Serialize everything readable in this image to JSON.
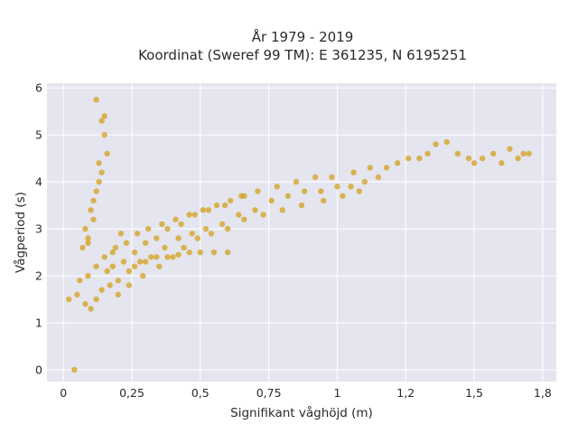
{
  "chart_data": {
    "type": "scatter",
    "title_lines": [
      "År 1979 - 2019",
      "Koordinat (Sweref 99 TM): E 361235, N 6195251"
    ],
    "xlabel": "Signifikant våghöjd (m)",
    "ylabel": "Vågperiod (s)",
    "xlim": [
      -0.06,
      1.8
    ],
    "ylim": [
      -0.25,
      6.1
    ],
    "x_ticks": [
      0,
      0.25,
      0.5,
      0.75,
      1,
      1.25,
      1.5,
      1.75
    ],
    "x_tick_labels": [
      "0",
      "0,25",
      "0,5",
      "0,75",
      "1",
      "1,2",
      "1,5",
      "1,8"
    ],
    "y_ticks": [
      0,
      1,
      2,
      3,
      4,
      5,
      6
    ],
    "y_tick_labels": [
      "0",
      "1",
      "2",
      "3",
      "4",
      "5",
      "6"
    ],
    "grid": true,
    "series_color": "#d4a422",
    "background_color": "#e5e5f0",
    "x": [
      0.04,
      0.02,
      0.05,
      0.08,
      0.1,
      0.12,
      0.14,
      0.17,
      0.2,
      0.24,
      0.28,
      0.32,
      0.37,
      0.42,
      0.47,
      0.52,
      0.58,
      0.64,
      0.7,
      0.76,
      0.82,
      0.88,
      0.94,
      1.0,
      1.05,
      1.1,
      1.15,
      1.18,
      1.22,
      1.26,
      1.3,
      1.33,
      1.36,
      1.4,
      1.44,
      1.48,
      1.5,
      1.53,
      1.57,
      1.6,
      1.63,
      1.66,
      1.68,
      1.7,
      0.06,
      0.09,
      0.12,
      0.15,
      0.19,
      0.23,
      0.27,
      0.31,
      0.36,
      0.41,
      0.46,
      0.51,
      0.56,
      0.61,
      0.66,
      0.08,
      0.1,
      0.12,
      0.14,
      0.16,
      0.09,
      0.11,
      0.13,
      0.15,
      0.11,
      0.13,
      0.14,
      0.15,
      0.07,
      0.09,
      0.12,
      0.18,
      0.22,
      0.26,
      0.3,
      0.34,
      0.38,
      0.43,
      0.48,
      0.53,
      0.59,
      0.65,
      0.71,
      0.78,
      0.85,
      0.92,
      0.98,
      1.06,
      1.12,
      0.26,
      0.3,
      0.34,
      0.38,
      0.42,
      0.46,
      0.5,
      0.55,
      0.6,
      0.2,
      0.24,
      0.29,
      0.35,
      0.4,
      0.44,
      0.49,
      0.54,
      0.6,
      0.66,
      0.73,
      0.8,
      0.87,
      0.95,
      1.02,
      1.08,
      0.16,
      0.18,
      0.21
    ],
    "y": [
      0.0,
      1.5,
      1.6,
      1.4,
      1.3,
      1.5,
      1.7,
      1.8,
      1.9,
      2.1,
      2.3,
      2.4,
      2.6,
      2.8,
      2.9,
      3.0,
      3.1,
      3.3,
      3.4,
      3.6,
      3.7,
      3.8,
      3.8,
      3.9,
      3.9,
      4.0,
      4.1,
      4.3,
      4.4,
      4.5,
      4.5,
      4.6,
      4.8,
      4.85,
      4.6,
      4.5,
      4.4,
      4.5,
      4.6,
      4.4,
      4.7,
      4.5,
      4.6,
      4.6,
      1.9,
      2.0,
      2.2,
      2.4,
      2.6,
      2.7,
      2.9,
      3.0,
      3.1,
      3.2,
      3.3,
      3.4,
      3.5,
      3.6,
      3.7,
      3.0,
      3.4,
      3.8,
      4.2,
      4.6,
      2.8,
      3.6,
      4.4,
      5.0,
      3.2,
      4.0,
      5.3,
      5.4,
      2.6,
      2.7,
      5.75,
      2.2,
      2.3,
      2.5,
      2.7,
      2.8,
      3.0,
      3.1,
      3.3,
      3.4,
      3.5,
      3.7,
      3.8,
      3.9,
      4.0,
      4.1,
      4.1,
      4.2,
      4.3,
      2.2,
      2.3,
      2.4,
      2.4,
      2.45,
      2.5,
      2.5,
      2.5,
      2.5,
      1.6,
      1.8,
      2.0,
      2.2,
      2.4,
      2.6,
      2.8,
      2.9,
      3.0,
      3.2,
      3.3,
      3.4,
      3.5,
      3.6,
      3.7,
      3.8,
      2.1,
      2.5,
      2.9
    ]
  }
}
